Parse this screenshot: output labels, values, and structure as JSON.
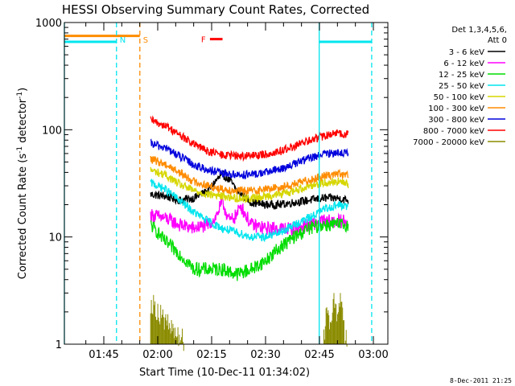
{
  "chart_data": {
    "type": "line",
    "title": "HESSI Observing Summary Count Rates, Corrected",
    "ylabel": "Corrected Count Rate (s⁻¹ detector⁻¹)",
    "ylabel_parts": {
      "main": "Corrected Count Rate (s",
      "sup1": "-1",
      "mid": " detector",
      "sup2": "-1",
      "end": ")"
    },
    "xlabel": "Start Time (10-Dec-11 01:34:02)",
    "y_scale": "log",
    "ylim": [
      1,
      1000
    ],
    "y_ticks": [
      {
        "value": 1,
        "label": "1"
      },
      {
        "value": 10,
        "label": "10"
      },
      {
        "value": 100,
        "label": "100"
      },
      {
        "value": 1000,
        "label": "1000"
      }
    ],
    "x_unit": "minutes since 01:34:02",
    "xlim": [
      0,
      90
    ],
    "x_ticks": [
      {
        "value": 10.97,
        "label": "01:45"
      },
      {
        "value": 25.97,
        "label": "02:00"
      },
      {
        "value": 40.97,
        "label": "02:15"
      },
      {
        "value": 55.97,
        "label": "02:30"
      },
      {
        "value": 70.97,
        "label": "02:45"
      },
      {
        "value": 85.97,
        "label": "03:00"
      }
    ],
    "legend_title": [
      "Det 1,3,4,5,6,",
      "Att 0"
    ],
    "legend_position": "right",
    "series": [
      {
        "name": "3 - 6 keV",
        "color": "#000000",
        "points": [
          [
            24,
            25
          ],
          [
            28,
            24
          ],
          [
            32,
            22
          ],
          [
            36,
            23
          ],
          [
            40,
            27
          ],
          [
            42,
            33
          ],
          [
            44,
            38
          ],
          [
            46,
            34
          ],
          [
            48,
            27
          ],
          [
            52,
            21
          ],
          [
            56,
            20
          ],
          [
            60,
            20
          ],
          [
            64,
            21
          ],
          [
            68,
            22
          ],
          [
            72,
            23
          ],
          [
            76,
            23
          ],
          [
            79,
            22
          ]
        ]
      },
      {
        "name": "6 - 12 keV",
        "color": "#ff00ff",
        "points": [
          [
            24,
            16
          ],
          [
            28,
            15
          ],
          [
            32,
            13
          ],
          [
            36,
            12
          ],
          [
            40,
            13
          ],
          [
            42,
            15
          ],
          [
            43,
            18
          ],
          [
            44,
            21
          ],
          [
            45,
            17
          ],
          [
            46,
            14
          ],
          [
            48,
            16
          ],
          [
            49,
            20
          ],
          [
            50,
            17
          ],
          [
            52,
            13
          ],
          [
            56,
            12
          ],
          [
            60,
            12
          ],
          [
            64,
            12
          ],
          [
            68,
            13
          ],
          [
            72,
            14
          ],
          [
            76,
            14
          ],
          [
            79,
            14
          ]
        ]
      },
      {
        "name": "12 - 25 keV",
        "color": "#00dd00",
        "points": [
          [
            24,
            13
          ],
          [
            26,
            11
          ],
          [
            28,
            9
          ],
          [
            32,
            7
          ],
          [
            36,
            5
          ],
          [
            40,
            5
          ],
          [
            44,
            5
          ],
          [
            48,
            4.5
          ],
          [
            52,
            5
          ],
          [
            56,
            6
          ],
          [
            60,
            8
          ],
          [
            64,
            10
          ],
          [
            68,
            12
          ],
          [
            72,
            13
          ],
          [
            76,
            13
          ],
          [
            79,
            13
          ]
        ]
      },
      {
        "name": "25 - 50 keV",
        "color": "#00e5ee",
        "points": [
          [
            24,
            32
          ],
          [
            28,
            28
          ],
          [
            32,
            22
          ],
          [
            36,
            17
          ],
          [
            40,
            14
          ],
          [
            44,
            12
          ],
          [
            48,
            11
          ],
          [
            52,
            10
          ],
          [
            56,
            10
          ],
          [
            60,
            11
          ],
          [
            64,
            13
          ],
          [
            68,
            15
          ],
          [
            72,
            18
          ],
          [
            76,
            20
          ],
          [
            79,
            19
          ]
        ]
      },
      {
        "name": "50 - 100 keV",
        "color": "#d6d600",
        "points": [
          [
            24,
            42
          ],
          [
            28,
            38
          ],
          [
            32,
            31
          ],
          [
            36,
            27
          ],
          [
            40,
            25
          ],
          [
            44,
            24
          ],
          [
            48,
            23
          ],
          [
            52,
            23
          ],
          [
            56,
            24
          ],
          [
            60,
            25
          ],
          [
            64,
            27
          ],
          [
            68,
            30
          ],
          [
            72,
            32
          ],
          [
            76,
            33
          ],
          [
            79,
            31
          ]
        ]
      },
      {
        "name": "100 - 300 keV",
        "color": "#ff8c00",
        "points": [
          [
            24,
            53
          ],
          [
            28,
            48
          ],
          [
            32,
            40
          ],
          [
            36,
            33
          ],
          [
            40,
            30
          ],
          [
            44,
            28
          ],
          [
            48,
            27
          ],
          [
            52,
            27
          ],
          [
            56,
            28
          ],
          [
            60,
            29
          ],
          [
            64,
            31
          ],
          [
            68,
            34
          ],
          [
            72,
            37
          ],
          [
            76,
            39
          ],
          [
            79,
            37
          ]
        ]
      },
      {
        "name": "300 - 800 keV",
        "color": "#0000dd",
        "points": [
          [
            24,
            74
          ],
          [
            28,
            68
          ],
          [
            32,
            57
          ],
          [
            36,
            47
          ],
          [
            40,
            42
          ],
          [
            44,
            39
          ],
          [
            48,
            38
          ],
          [
            52,
            38
          ],
          [
            56,
            40
          ],
          [
            60,
            43
          ],
          [
            64,
            48
          ],
          [
            68,
            54
          ],
          [
            72,
            59
          ],
          [
            76,
            62
          ],
          [
            79,
            60
          ]
        ]
      },
      {
        "name": "800 - 7000 keV",
        "color": "#ff0000",
        "points": [
          [
            24,
            122
          ],
          [
            28,
            110
          ],
          [
            32,
            90
          ],
          [
            36,
            73
          ],
          [
            40,
            63
          ],
          [
            44,
            58
          ],
          [
            48,
            57
          ],
          [
            52,
            57
          ],
          [
            56,
            59
          ],
          [
            60,
            63
          ],
          [
            64,
            70
          ],
          [
            68,
            79
          ],
          [
            72,
            87
          ],
          [
            76,
            93
          ],
          [
            79,
            90
          ]
        ]
      },
      {
        "name": "7000 - 20000 keV",
        "color": "#8b8b00",
        "points": [
          [
            24,
            2.4
          ],
          [
            26,
            2.0
          ],
          [
            28,
            1.6
          ],
          [
            30,
            1.3
          ],
          [
            34,
            1.0
          ],
          [
            72,
            1.0
          ],
          [
            73,
            2.2
          ],
          [
            74,
            1.6
          ],
          [
            75,
            2.6
          ],
          [
            76,
            1.5
          ],
          [
            77,
            2.8
          ],
          [
            78,
            1.2
          ],
          [
            79,
            1.0
          ]
        ]
      }
    ],
    "annotations": [
      {
        "label": "N",
        "x": 14.5,
        "color": "#00e5ee",
        "style": "dashed"
      },
      {
        "label": "S",
        "x": 21.0,
        "color": "#ff8c00",
        "style": "dashed"
      },
      {
        "label": "F",
        "x_start": 40.5,
        "x_end": 44.0,
        "y": 700,
        "color": "#ff0000"
      }
    ],
    "attenuator_bars": [
      {
        "x_start": 0,
        "x_end": 21.0,
        "y": 750,
        "color": "#ff8c00"
      },
      {
        "x_start": 0,
        "x_end": 14.5,
        "y": 660,
        "color": "#00e5ee"
      },
      {
        "x_start": 70.9,
        "x_end": 85.5,
        "y": 660,
        "color": "#00e5ee"
      }
    ],
    "vertical_lines": [
      {
        "x": 0,
        "color": "#00e5ee",
        "style": "solid"
      },
      {
        "x": 70.9,
        "color": "#00e5ee",
        "style": "solid"
      },
      {
        "x": 85.5,
        "color": "#00e5ee",
        "style": "dashed"
      }
    ]
  },
  "footer_timestamp": "8-Dec-2011 21:25"
}
